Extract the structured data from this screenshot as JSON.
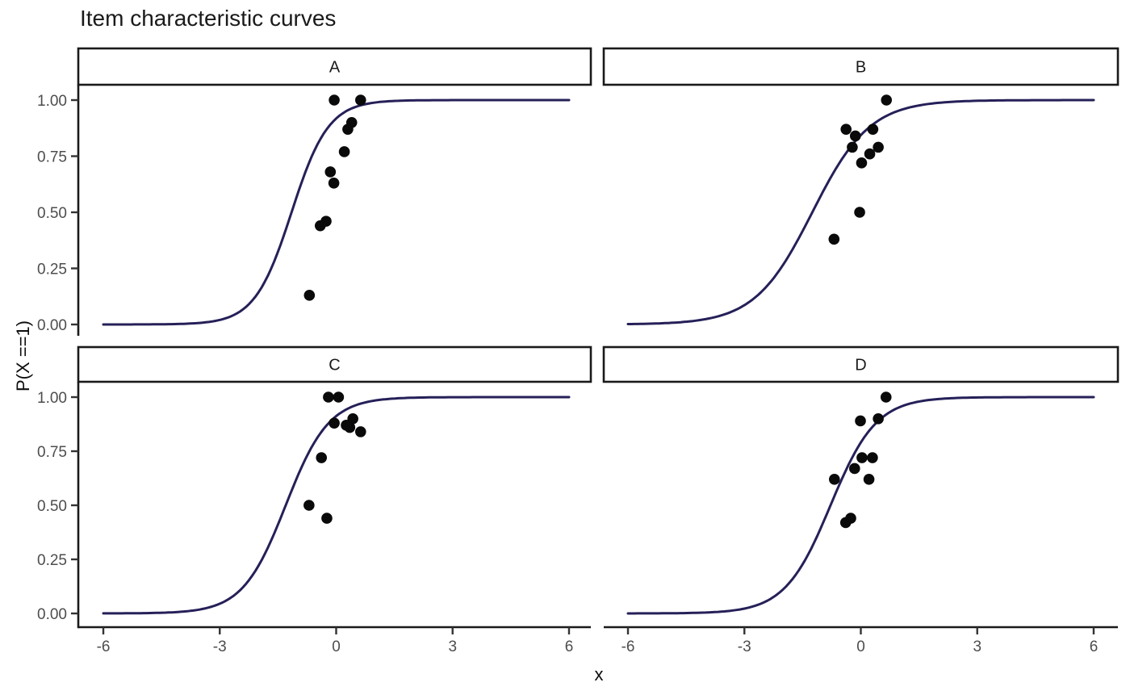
{
  "title": "Item characteristic curves",
  "axes": {
    "x_label": "x",
    "y_label": "P(X ==1)",
    "x_ticks": {
      "values": [
        -6,
        -3,
        0,
        3,
        6
      ],
      "labels": [
        "-6",
        "-3",
        "0",
        "3",
        "6"
      ]
    },
    "y_ticks": {
      "values": [
        0,
        0.25,
        0.5,
        0.75,
        1
      ],
      "labels": [
        "0.00",
        "0.25",
        "0.50",
        "0.75",
        "1.00"
      ]
    },
    "x_range": [
      -6,
      6
    ],
    "y_range": [
      0,
      1
    ]
  },
  "colors": {
    "background": "#ffffff",
    "curve": "#252058",
    "point": "#0a0a0a",
    "axis_line": "#1a1a1a",
    "tick_mark": "#333333",
    "tick_label": "#4d4d4d",
    "strip_border": "#1a1a1a",
    "strip_fill": "#ffffff",
    "strip_label": "#1a1a1a"
  },
  "chart_data": {
    "type": "line",
    "subtype": "faceted-logistic-curves-with-scatter",
    "title": "Item characteristic curves",
    "xlabel": "x",
    "ylabel": "P(X ==1)",
    "xlim": [
      -6,
      6
    ],
    "ylim": [
      0,
      1
    ],
    "grid": false,
    "legend": "none",
    "facets": [
      {
        "label": "A",
        "curve": {
          "model": "logistic",
          "a": 2.1,
          "b": -1.15
        },
        "points": [
          [
            -0.05,
            1.0
          ],
          [
            0.63,
            1.0
          ],
          [
            0.4,
            0.9
          ],
          [
            0.3,
            0.87
          ],
          [
            0.21,
            0.77
          ],
          [
            -0.15,
            0.68
          ],
          [
            -0.06,
            0.63
          ],
          [
            -0.26,
            0.46
          ],
          [
            -0.41,
            0.44
          ],
          [
            -0.69,
            0.13
          ]
        ]
      },
      {
        "label": "B",
        "curve": {
          "model": "logistic",
          "a": 1.35,
          "b": -1.25
        },
        "points": [
          [
            0.66,
            1.0
          ],
          [
            -0.38,
            0.87
          ],
          [
            0.31,
            0.87
          ],
          [
            -0.14,
            0.84
          ],
          [
            0.45,
            0.79
          ],
          [
            -0.22,
            0.79
          ],
          [
            0.23,
            0.76
          ],
          [
            0.02,
            0.72
          ],
          [
            -0.03,
            0.5
          ],
          [
            -0.69,
            0.38
          ]
        ]
      },
      {
        "label": "C",
        "curve": {
          "model": "logistic",
          "a": 1.8,
          "b": -1.3
        },
        "points": [
          [
            -0.2,
            1.0
          ],
          [
            0.06,
            1.0
          ],
          [
            0.43,
            0.9
          ],
          [
            -0.05,
            0.88
          ],
          [
            0.26,
            0.87
          ],
          [
            0.35,
            0.86
          ],
          [
            0.63,
            0.84
          ],
          [
            -0.38,
            0.72
          ],
          [
            -0.7,
            0.5
          ],
          [
            -0.24,
            0.44
          ]
        ]
      },
      {
        "label": "D",
        "curve": {
          "model": "logistic",
          "a": 1.7,
          "b": -0.78
        },
        "points": [
          [
            0.65,
            1.0
          ],
          [
            0.45,
            0.9
          ],
          [
            -0.01,
            0.89
          ],
          [
            0.03,
            0.72
          ],
          [
            0.3,
            0.72
          ],
          [
            -0.16,
            0.67
          ],
          [
            -0.68,
            0.62
          ],
          [
            0.21,
            0.62
          ],
          [
            -0.26,
            0.44
          ],
          [
            -0.39,
            0.42
          ]
        ]
      }
    ]
  }
}
